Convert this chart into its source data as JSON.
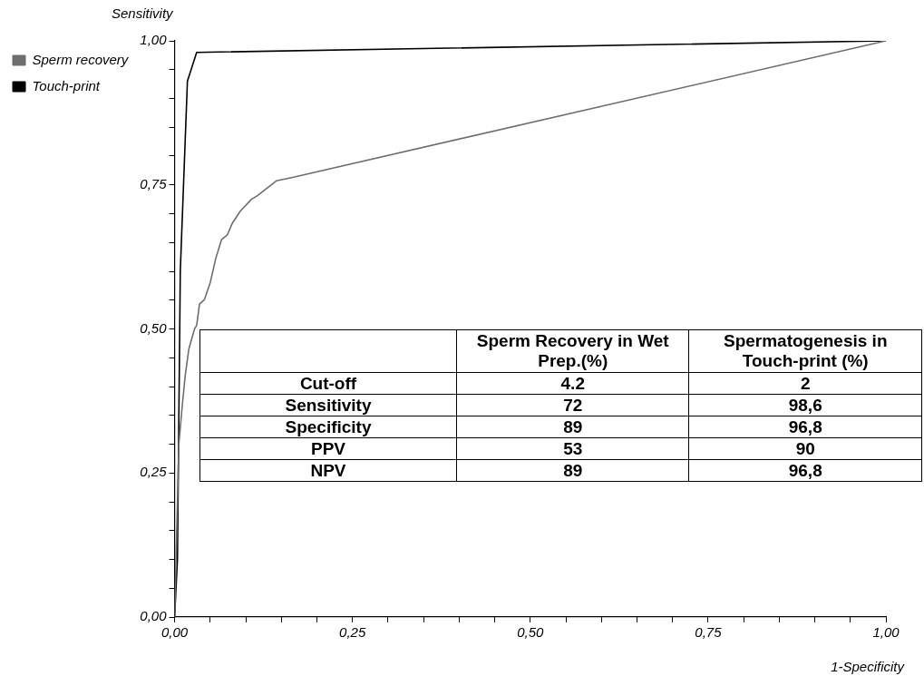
{
  "chart_data": {
    "type": "line",
    "xlabel": "1-Specificity",
    "ylabel": "Sensitivity",
    "xlim": [
      0,
      1
    ],
    "ylim": [
      0,
      1
    ],
    "xticks": [
      {
        "value": 0,
        "label": "0,00"
      },
      {
        "value": 0.05,
        "label": null
      },
      {
        "value": 0.1,
        "label": null
      },
      {
        "value": 0.15,
        "label": null
      },
      {
        "value": 0.2,
        "label": null
      },
      {
        "value": 0.25,
        "label": "0,25"
      },
      {
        "value": 0.3,
        "label": null
      },
      {
        "value": 0.35,
        "label": null
      },
      {
        "value": 0.4,
        "label": null
      },
      {
        "value": 0.45,
        "label": null
      },
      {
        "value": 0.5,
        "label": "0,50"
      },
      {
        "value": 0.55,
        "label": null
      },
      {
        "value": 0.6,
        "label": null
      },
      {
        "value": 0.65,
        "label": null
      },
      {
        "value": 0.7,
        "label": null
      },
      {
        "value": 0.75,
        "label": "0,75"
      },
      {
        "value": 0.8,
        "label": null
      },
      {
        "value": 0.85,
        "label": null
      },
      {
        "value": 0.9,
        "label": null
      },
      {
        "value": 0.95,
        "label": null
      },
      {
        "value": 1,
        "label": "1,00"
      }
    ],
    "yticks": [
      {
        "value": 0,
        "label": "0,00"
      },
      {
        "value": 0.05,
        "label": null
      },
      {
        "value": 0.1,
        "label": null
      },
      {
        "value": 0.15,
        "label": null
      },
      {
        "value": 0.2,
        "label": null
      },
      {
        "value": 0.25,
        "label": "0,25"
      },
      {
        "value": 0.3,
        "label": null
      },
      {
        "value": 0.35,
        "label": null
      },
      {
        "value": 0.4,
        "label": null
      },
      {
        "value": 0.45,
        "label": null
      },
      {
        "value": 0.5,
        "label": "0,50"
      },
      {
        "value": 0.55,
        "label": null
      },
      {
        "value": 0.6,
        "label": null
      },
      {
        "value": 0.65,
        "label": null
      },
      {
        "value": 0.7,
        "label": null
      },
      {
        "value": 0.75,
        "label": "0,75"
      },
      {
        "value": 0.8,
        "label": null
      },
      {
        "value": 0.85,
        "label": null
      },
      {
        "value": 0.9,
        "label": null
      },
      {
        "value": 0.95,
        "label": null
      },
      {
        "value": 1,
        "label": "1,00"
      }
    ],
    "legend": "top left",
    "line_style": "solid",
    "series": [
      {
        "name": "Sperm recovery",
        "color": "#6e6e6e",
        "x": [
          0,
          0.002,
          0.004,
          0.006,
          0.011,
          0.015,
          0.02,
          0.028,
          0.031,
          0.035,
          0.042,
          0.05,
          0.058,
          0.066,
          0.074,
          0.081,
          0.092,
          0.108,
          0.116,
          0.143,
          0.166,
          1
        ],
        "values": [
          0,
          0.1,
          0.2,
          0.3,
          0.37,
          0.42,
          0.465,
          0.5,
          0.506,
          0.543,
          0.551,
          0.58,
          0.623,
          0.655,
          0.663,
          0.683,
          0.704,
          0.725,
          0.731,
          0.757,
          0.763,
          1
        ]
      },
      {
        "name": "Touch-print",
        "color": "#000000",
        "x": [
          0,
          0.004,
          0.008,
          0.018,
          0.031,
          1
        ],
        "values": [
          0,
          0.1,
          0.6,
          0.93,
          0.98,
          1
        ]
      }
    ],
    "annotations": [
      "Sperm Recovery in Wet Prep.(%)",
      "Spermatogenesis in Touch-print (%)",
      "Cut-off",
      "4.2",
      "2",
      "Sensitivity",
      "72",
      "98,6",
      "Specificity",
      "89",
      "96,8",
      "PPV",
      "53",
      "90",
      "NPV",
      "89",
      "96,8"
    ]
  }
}
